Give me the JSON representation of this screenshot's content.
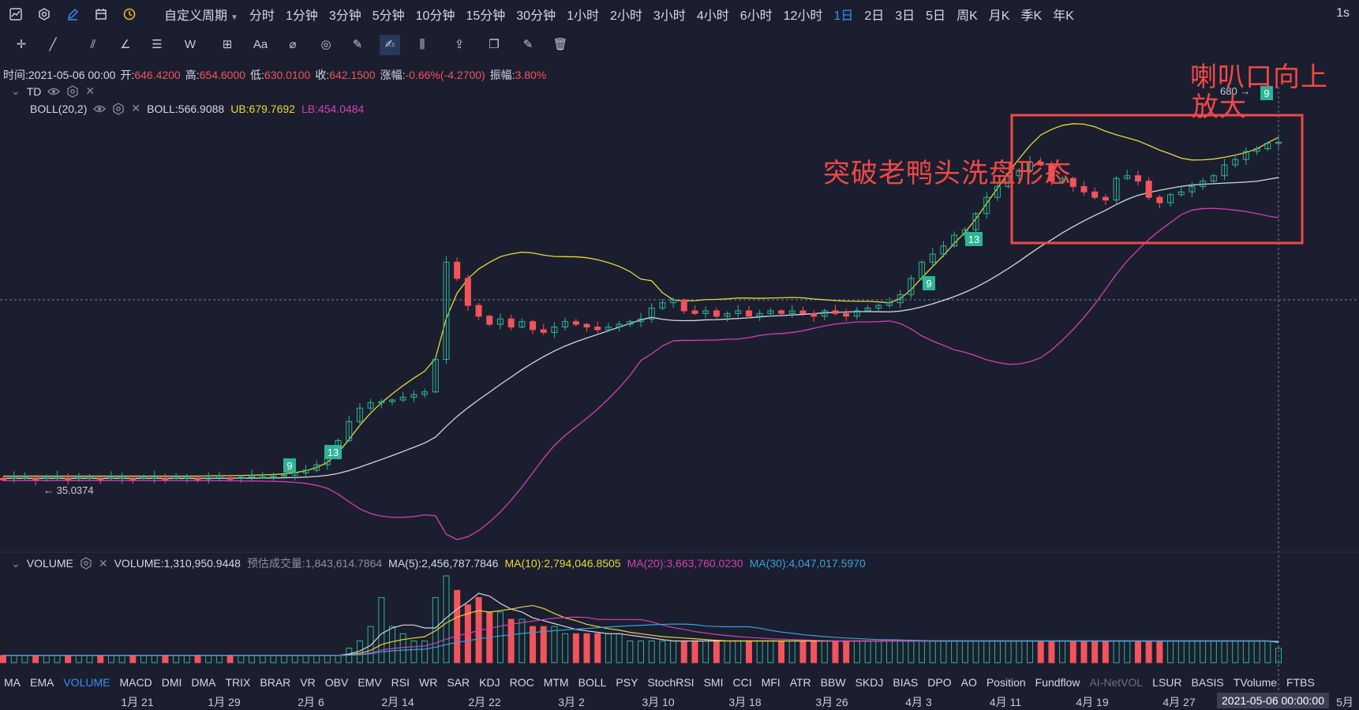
{
  "top_toolbar": {
    "icons": [
      "chart-type-icon",
      "settings-hex-icon",
      "pen-icon",
      "calendar-icon",
      "clock-icon"
    ],
    "custom_period": "自定义周期",
    "periods": [
      "分时",
      "1分钟",
      "3分钟",
      "5分钟",
      "10分钟",
      "15分钟",
      "30分钟",
      "1小时",
      "2小时",
      "3小时",
      "4小时",
      "6小时",
      "12小时",
      "1日",
      "2日",
      "3日",
      "5日",
      "周K",
      "月K",
      "季K",
      "年K"
    ],
    "active_period": "1日",
    "interval": "1s"
  },
  "drawing_tools": [
    "crosshair-icon",
    "line-icon",
    "parallel-line-icon",
    "angle-icon",
    "horizontal-lines-icon",
    "wave-icon",
    "measure-box-icon",
    "text-icon",
    "fib-icon",
    "pattern-icon",
    "ruler-icon",
    "brush-icon",
    "candles-icon",
    "lock-icon",
    "copy-icon",
    "edit-icon",
    "trash-icon"
  ],
  "active_tool_index": 11,
  "ohlc": {
    "time_label": "时间:",
    "time": "2021-05-06 00:00",
    "open_label": "开:",
    "open": "646.4200",
    "high_label": "高:",
    "high": "654.6000",
    "low_label": "低:",
    "low": "630.0100",
    "close_label": "收:",
    "close": "642.1500",
    "change_label": "涨幅:",
    "change": "-0.66%(-4.2700)",
    "amplitude_label": "振幅:",
    "amplitude": "3.80%"
  },
  "td_legend": {
    "name": "TD"
  },
  "boll_legend": {
    "name": "BOLL(20,2)",
    "mid": "BOLL:566.9088",
    "ub": "UB:679.7692",
    "lb": "LB:454.0484",
    "colors": {
      "mid": "#d6d8e0",
      "ub": "#e8d83a",
      "lb": "#d43fb8"
    }
  },
  "volume_legend": {
    "name": "VOLUME",
    "volume": "VOLUME:1,310,950.9448",
    "estimate": "预估成交量:1,843,614.7864",
    "ma5": "MA(5):2,456,787.7846",
    "ma10": "MA(10):2,794,046.8505",
    "ma20": "MA(20):3,663,760.0230",
    "ma30": "MA(30):4,047,017.5970",
    "colors": {
      "ma5": "#d6d8e0",
      "ma10": "#e8d83a",
      "ma20": "#d43fb8",
      "ma30": "#3aa0e0"
    }
  },
  "annotations": {
    "breakout": "突破老鸭头洗盘形态",
    "horn_line1": "喇叭口向上",
    "horn_line2": "放大",
    "price_tag": "680",
    "low_tag": "35.0374",
    "td_markers": [
      "9",
      "13",
      "9",
      "13",
      "9"
    ]
  },
  "indicators": [
    "MA",
    "EMA",
    "VOLUME",
    "MACD",
    "DMI",
    "DMA",
    "TRIX",
    "BRAR",
    "VR",
    "OBV",
    "EMV",
    "RSI",
    "WR",
    "SAR",
    "KDJ",
    "ROC",
    "MTM",
    "BOLL",
    "PSY",
    "StochRSI",
    "SMI",
    "CCI",
    "MFI",
    "ATR",
    "BBW",
    "SKDJ",
    "BIAS",
    "DPO",
    "AO",
    "Position",
    "Fundflow",
    "AI-NetVOL",
    "LSUR",
    "BASIS",
    "TVolume",
    "FTBS"
  ],
  "active_indicator": "VOLUME",
  "disabled_indicator": "AI-NetVOL",
  "time_axis": [
    "1月 21",
    "1月 29",
    "2月 6",
    "2月 14",
    "2月 22",
    "3月 2",
    "3月 10",
    "3月 18",
    "3月 26",
    "4月 3",
    "4月 11",
    "4月 19",
    "4月 27",
    "5月"
  ],
  "cursor_time": "2021-05-06 00:00:00",
  "colors": {
    "up": "#2bb596",
    "down": "#f2545b",
    "background": "#1b1e2e",
    "accent": "#3b8cff",
    "annotation": "#f04848"
  },
  "chart_data": {
    "type": "candlestick",
    "ylim": [
      -60,
      730
    ],
    "price_shape": [
      20,
      20,
      20,
      20,
      20,
      20,
      20,
      20,
      20,
      20,
      20,
      20,
      20,
      20,
      20,
      20,
      20,
      20,
      20,
      21,
      21,
      21,
      22,
      22,
      23,
      24,
      26,
      30,
      35,
      45,
      60,
      90,
      125,
      150,
      160,
      162,
      165,
      170,
      175,
      180,
      240,
      420,
      390,
      340,
      320,
      305,
      315,
      300,
      310,
      295,
      290,
      300,
      310,
      305,
      300,
      295,
      300,
      305,
      310,
      315,
      335,
      345,
      350,
      330,
      325,
      330,
      320,
      325,
      330,
      320,
      325,
      330,
      325,
      330,
      325,
      320,
      330,
      325,
      320,
      330,
      335,
      340,
      345,
      360,
      390,
      420,
      435,
      450,
      470,
      480,
      510,
      540,
      560,
      580,
      590,
      605,
      600,
      570,
      575,
      560,
      550,
      540,
      535,
      575,
      580,
      570,
      540,
      530,
      545,
      550,
      560,
      570,
      580,
      600,
      610,
      625,
      630,
      640,
      642
    ],
    "volume_shape": [
      1,
      1,
      1,
      1,
      1,
      1,
      1,
      1,
      1,
      1,
      1,
      1,
      1,
      1,
      1,
      1,
      1,
      1,
      1,
      1,
      1,
      1,
      1,
      1,
      1,
      1,
      1,
      1,
      1,
      1,
      1,
      1,
      2,
      3,
      5,
      9,
      5,
      4,
      3,
      3,
      9,
      12,
      10,
      8,
      9,
      7,
      7,
      6,
      6,
      5,
      5,
      5,
      4,
      4,
      4,
      4,
      4,
      4,
      3,
      3,
      3,
      3,
      3,
      3,
      3,
      3,
      3,
      3,
      3,
      3,
      3,
      3,
      3,
      3,
      3,
      3,
      3,
      3,
      3,
      3,
      3,
      3,
      3,
      3,
      3,
      3,
      3,
      3,
      3,
      3,
      3,
      3,
      3,
      3,
      3,
      3,
      3,
      3,
      3,
      3,
      3,
      3,
      3,
      3,
      3,
      3,
      3,
      3,
      3,
      3,
      3,
      3,
      3,
      3,
      3,
      3,
      3,
      3,
      2
    ]
  }
}
